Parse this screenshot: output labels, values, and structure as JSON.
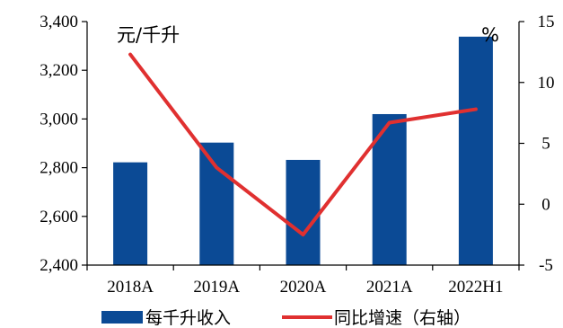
{
  "chart_data": {
    "type": "bar+line",
    "categories": [
      "2018A",
      "2019A",
      "2020A",
      "2021A",
      "2022H1"
    ],
    "series": [
      {
        "name": "每千升收入",
        "type": "bar",
        "axis": "left",
        "values": [
          2822,
          2903,
          2832,
          3020,
          3338
        ],
        "color": "#0B4A95"
      },
      {
        "name": "同比增速（右轴）",
        "type": "line",
        "axis": "right",
        "values": [
          12.3,
          3.0,
          -2.5,
          6.7,
          7.8
        ],
        "color": "#E03030"
      }
    ],
    "left_axis": {
      "unit_label": "元/千升",
      "ylim": [
        2400,
        3400
      ],
      "ticks": [
        "2,400",
        "2,600",
        "2,800",
        "3,000",
        "3,200",
        "3,400"
      ],
      "tick_values": [
        2400,
        2600,
        2800,
        3000,
        3200,
        3400
      ]
    },
    "right_axis": {
      "unit_label": "%",
      "ylim": [
        -5,
        15
      ],
      "ticks": [
        "-5",
        "0",
        "5",
        "10",
        "15"
      ],
      "tick_values": [
        -5,
        0,
        5,
        10,
        15
      ]
    },
    "legend_position": "bottom",
    "grid": false
  }
}
